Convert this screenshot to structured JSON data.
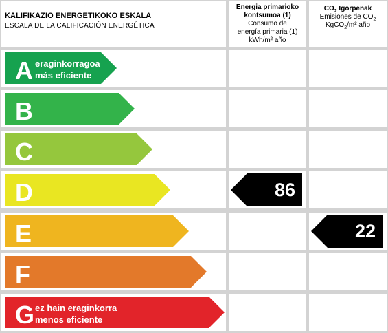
{
  "header": {
    "title_eu": "KALIFIKAZIO ENERGETIKOKO ESKALA",
    "title_es": "ESCALA DE LA CALIFICACIÓN ENERGÉTICA",
    "col1": {
      "line1": "Energia primarioko",
      "line2": "kontsumoa (1)",
      "line3": "Consumo de",
      "line4": "energía primaria (1)",
      "line5": "kWh/m² año"
    },
    "col2": {
      "line1_a": "CO",
      "line1_sub": "2",
      "line1_b": " Igorpenak",
      "line2_a": "Emisiones de CO",
      "line2_sub": "2",
      "line3_a": "KgCO",
      "line3_sub": "2",
      "line3_b": "/m² año"
    }
  },
  "ratings": [
    {
      "letter": "A",
      "color": "#16a24f",
      "arrow_fill": 0.495,
      "sub1": "eraginkorragoa",
      "sub2": "más eficiente"
    },
    {
      "letter": "B",
      "color": "#33b34a",
      "arrow_fill": 0.575,
      "sub1": "",
      "sub2": ""
    },
    {
      "letter": "C",
      "color": "#95c73d",
      "arrow_fill": 0.655,
      "sub1": "",
      "sub2": ""
    },
    {
      "letter": "D",
      "color": "#e9e622",
      "arrow_fill": 0.735,
      "sub1": "",
      "sub2": ""
    },
    {
      "letter": "E",
      "color": "#efb51f",
      "arrow_fill": 0.815,
      "sub1": "",
      "sub2": ""
    },
    {
      "letter": "F",
      "color": "#e3792a",
      "arrow_fill": 0.895,
      "sub1": "",
      "sub2": ""
    },
    {
      "letter": "G",
      "color": "#e2242a",
      "arrow_fill": 0.975,
      "sub1": "ez hain eraginkorra",
      "sub2": "menos eficiente"
    }
  ],
  "indicators": {
    "consumption": {
      "rating": "D",
      "value": "86"
    },
    "emissions": {
      "rating": "E",
      "value": "22"
    }
  }
}
